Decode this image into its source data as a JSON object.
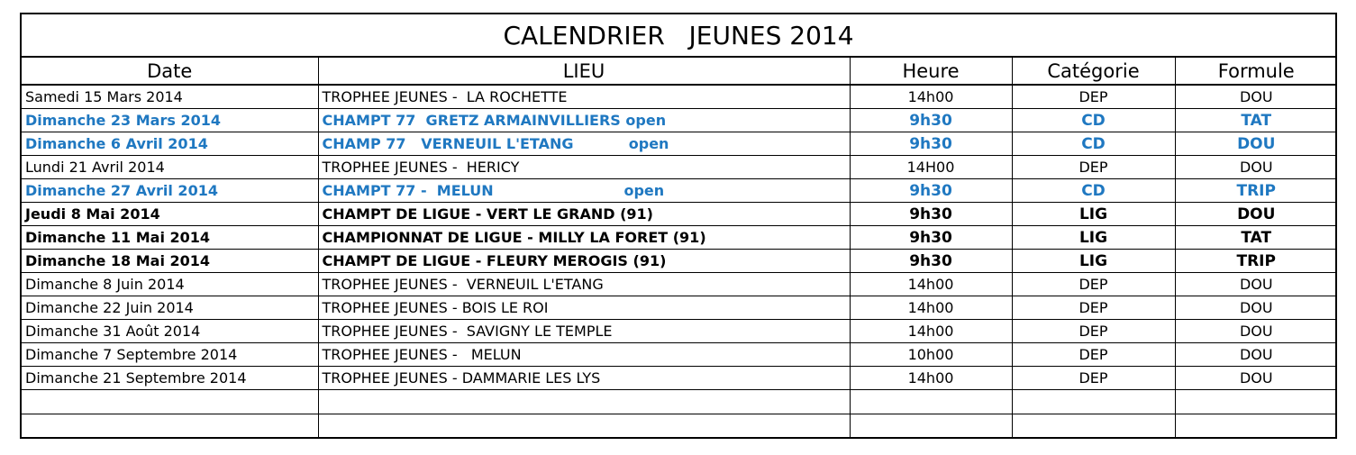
{
  "title": "CALENDRIER   JEUNES 2014",
  "columns": [
    "Date",
    "LIEU",
    "Heure",
    "Catégorie",
    "Formule"
  ],
  "colors": {
    "blue": "#1f78c1",
    "black": "#000000"
  },
  "rows": [
    {
      "style": "normal",
      "date": "Samedi 15 Mars 2014",
      "lieu": "TROPHEE JEUNES -  LA ROCHETTE",
      "heure": "14h00",
      "categorie": "DEP",
      "formule": "DOU"
    },
    {
      "style": "blue",
      "date": "Dimanche 23 Mars 2014",
      "lieu": "CHAMPT 77  GRETZ ARMAINVILLIERS open",
      "heure": "9h30",
      "categorie": "CD",
      "formule": "TAT"
    },
    {
      "style": "blue",
      "date": "Dimanche 6 Avril 2014",
      "lieu": "CHAMP 77   VERNEUIL L'ETANG           open",
      "heure": "9h30",
      "categorie": "CD",
      "formule": "DOU"
    },
    {
      "style": "normal",
      "date": "Lundi 21 Avril 2014",
      "lieu": "TROPHEE JEUNES -  HERICY",
      "heure": "14H00",
      "categorie": "DEP",
      "formule": "DOU"
    },
    {
      "style": "blue",
      "date": "Dimanche 27 Avril 2014",
      "lieu": "CHAMPT 77 -  MELUN                          open",
      "heure": "9h30",
      "categorie": "CD",
      "formule": "TRIP"
    },
    {
      "style": "bold",
      "date": "Jeudi 8 Mai 2014",
      "lieu": "CHAMPT DE LIGUE - VERT LE GRAND (91)",
      "heure": "9h30",
      "categorie": "LIG",
      "formule": "DOU"
    },
    {
      "style": "bold",
      "date": "Dimanche 11 Mai 2014",
      "lieu": "CHAMPIONNAT DE LIGUE - MILLY LA FORET (91)",
      "heure": "9h30",
      "categorie": "LIG",
      "formule": "TAT"
    },
    {
      "style": "bold",
      "date": "Dimanche 18 Mai 2014",
      "lieu": "CHAMPT DE LIGUE - FLEURY MEROGIS (91)",
      "heure": "9h30",
      "categorie": "LIG",
      "formule": "TRIP"
    },
    {
      "style": "normal",
      "date": "Dimanche 8 Juin 2014",
      "lieu": "TROPHEE JEUNES -  VERNEUIL L'ETANG",
      "heure": "14h00",
      "categorie": "DEP",
      "formule": "DOU"
    },
    {
      "style": "normal",
      "date": "Dimanche 22 Juin 2014",
      "lieu": "TROPHEE JEUNES - BOIS LE ROI",
      "heure": "14h00",
      "categorie": "DEP",
      "formule": "DOU"
    },
    {
      "style": "normal",
      "date": "Dimanche 31 Août 2014",
      "lieu": "TROPHEE JEUNES -  SAVIGNY LE TEMPLE",
      "heure": "14h00",
      "categorie": "DEP",
      "formule": "DOU"
    },
    {
      "style": "normal",
      "date": "Dimanche 7 Septembre 2014",
      "lieu": "TROPHEE JEUNES -   MELUN",
      "heure": "10h00",
      "categorie": "DEP",
      "formule": "DOU"
    },
    {
      "style": "normal",
      "date": "Dimanche 21 Septembre 2014",
      "lieu": "TROPHEE JEUNES - DAMMARIE LES LYS",
      "heure": "14h00",
      "categorie": "DEP",
      "formule": "DOU"
    }
  ],
  "empty_rows": 2
}
